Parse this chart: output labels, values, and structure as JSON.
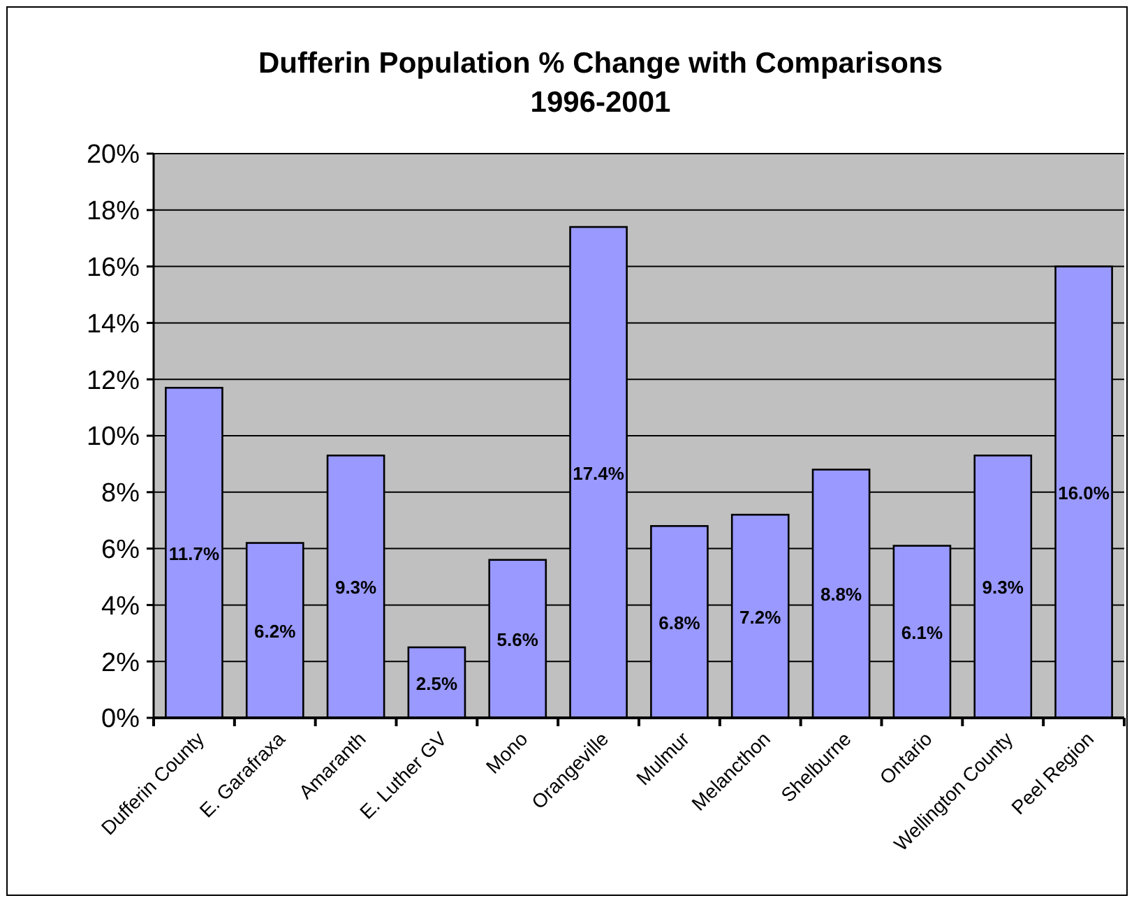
{
  "chart_data": {
    "type": "bar",
    "title": "Dufferin Population % Change with Comparisons",
    "subtitle": "1996-2001",
    "categories": [
      "Dufferin County",
      "E. Garafraxa",
      "Amaranth",
      "E. Luther GV",
      "Mono",
      "Orangeville",
      "Mulmur",
      "Melancthon",
      "Shelburne",
      "Ontario",
      "Wellington County",
      "Peel Region"
    ],
    "values": [
      11.7,
      6.2,
      9.3,
      2.5,
      5.6,
      17.4,
      6.8,
      7.2,
      8.8,
      6.1,
      9.3,
      16.0
    ],
    "value_labels": [
      "11.7%",
      "6.2%",
      "9.3%",
      "2.5%",
      "5.6%",
      "17.4%",
      "6.8%",
      "7.2%",
      "8.8%",
      "6.1%",
      "9.3%",
      "16.0%"
    ],
    "color": "#9999ff",
    "ylim": [
      0,
      20
    ],
    "yticks": [
      {
        "value": 0,
        "label": "0%"
      },
      {
        "value": 2,
        "label": "2%"
      },
      {
        "value": 4,
        "label": "4%"
      },
      {
        "value": 6,
        "label": "6%"
      },
      {
        "value": 8,
        "label": "8%"
      },
      {
        "value": 10,
        "label": "10%"
      },
      {
        "value": 12,
        "label": "12%"
      },
      {
        "value": 14,
        "label": "14%"
      },
      {
        "value": 16,
        "label": "16%"
      },
      {
        "value": 18,
        "label": "18%"
      },
      {
        "value": 20,
        "label": "20%"
      }
    ],
    "grid": "y"
  }
}
